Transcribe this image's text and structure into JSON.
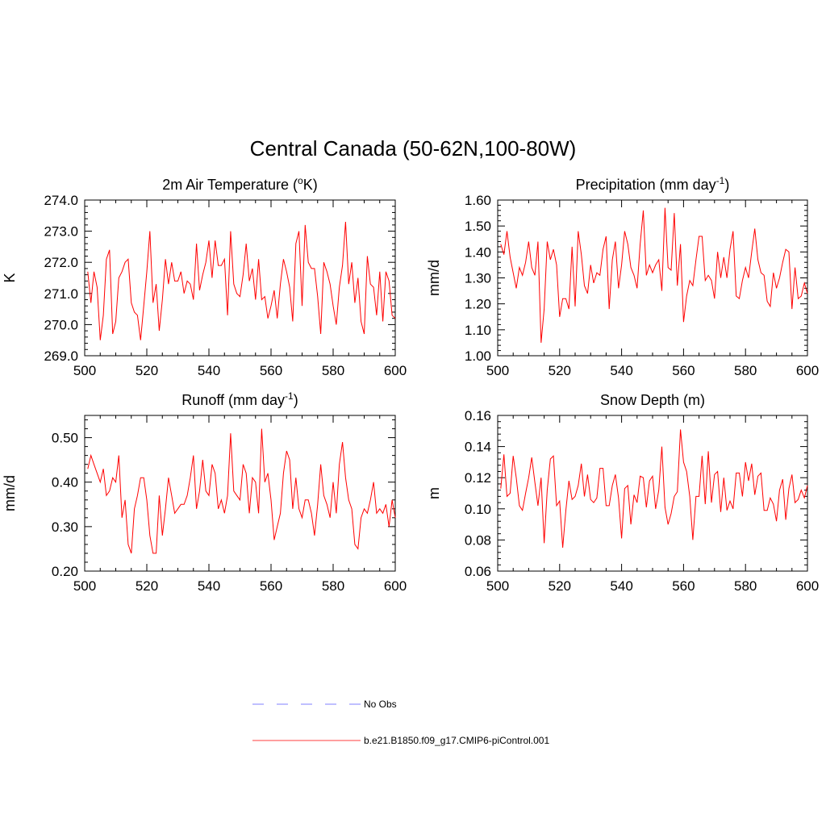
{
  "main_title": "Central Canada (50-62N,100-80W)",
  "legend": [
    {
      "label": "No Obs",
      "color": "#9999ff",
      "style": "dashed"
    },
    {
      "label": "b.e21.B1850.f09_g17.CMIP6-piControl.001",
      "color": "#ff6666",
      "style": "solid"
    }
  ],
  "chart_data": [
    {
      "type": "line",
      "title": "2m Air Temperature (",
      "title_sup": "o",
      "title_suffix": "K)",
      "ylabel": "K",
      "xlabel": "",
      "xlim": [
        500,
        600
      ],
      "ylim": [
        269.0,
        274.0
      ],
      "xticks": [
        500,
        520,
        540,
        560,
        580,
        600
      ],
      "xtick_labels": [
        "500",
        "520",
        "540",
        "560",
        "580",
        "600"
      ],
      "yticks": [
        269.0,
        270.0,
        271.0,
        272.0,
        273.0,
        274.0
      ],
      "ytick_labels": [
        "269.0",
        "270.0",
        "271.0",
        "272.0",
        "273.0",
        "274.0"
      ],
      "series": [
        {
          "name": "b.e21.B1850.f09_g17.CMIP6-piControl.001",
          "x_start": 501,
          "values": [
            271.7,
            270.7,
            271.7,
            271.2,
            269.5,
            270.3,
            272.1,
            272.4,
            269.7,
            270.1,
            271.5,
            271.7,
            272.0,
            272.1,
            270.7,
            270.4,
            270.3,
            269.5,
            270.6,
            271.7,
            273.0,
            270.7,
            271.3,
            269.8,
            270.8,
            272.1,
            271.3,
            272.0,
            271.4,
            271.4,
            271.7,
            271.0,
            271.4,
            271.3,
            270.8,
            272.6,
            271.1,
            271.6,
            272.0,
            272.7,
            271.5,
            272.7,
            271.9,
            271.9,
            272.1,
            270.3,
            273.0,
            271.3,
            271.0,
            270.9,
            271.6,
            272.6,
            271.4,
            271.8,
            270.8,
            272.1,
            270.8,
            270.9,
            270.2,
            270.6,
            271.1,
            270.2,
            271.3,
            272.1,
            271.7,
            271.2,
            270.1,
            272.6,
            273.0,
            270.6,
            273.2,
            272.0,
            271.8,
            271.8,
            270.9,
            269.7,
            272.0,
            271.7,
            271.3,
            270.6,
            270.0,
            271.2,
            271.9,
            273.3,
            271.3,
            272.0,
            270.7,
            271.5,
            270.1,
            269.7,
            272.2,
            271.3,
            271.2,
            270.3,
            271.7,
            270.1,
            271.7,
            271.4,
            270.3,
            270.2
          ]
        }
      ]
    },
    {
      "type": "line",
      "title": "Precipitation (mm day",
      "title_sup": "-1",
      "title_suffix": ")",
      "ylabel": "mm/d",
      "xlabel": "",
      "xlim": [
        500,
        600
      ],
      "ylim": [
        1.0,
        1.6
      ],
      "xticks": [
        500,
        520,
        540,
        560,
        580,
        600
      ],
      "xtick_labels": [
        "500",
        "520",
        "540",
        "560",
        "580",
        "600"
      ],
      "yticks": [
        1.0,
        1.1,
        1.2,
        1.3,
        1.4,
        1.5,
        1.6
      ],
      "ytick_labels": [
        "1.00",
        "1.10",
        "1.20",
        "1.30",
        "1.40",
        "1.50",
        "1.60"
      ],
      "series": [
        {
          "name": "b.e21.B1850.f09_g17.CMIP6-piControl.001",
          "x_start": 501,
          "values": [
            1.43,
            1.39,
            1.48,
            1.38,
            1.32,
            1.26,
            1.34,
            1.31,
            1.36,
            1.44,
            1.34,
            1.31,
            1.44,
            1.05,
            1.18,
            1.44,
            1.37,
            1.41,
            1.35,
            1.15,
            1.22,
            1.22,
            1.18,
            1.42,
            1.19,
            1.48,
            1.39,
            1.27,
            1.24,
            1.35,
            1.28,
            1.32,
            1.31,
            1.41,
            1.46,
            1.18,
            1.37,
            1.44,
            1.26,
            1.35,
            1.48,
            1.43,
            1.34,
            1.31,
            1.26,
            1.43,
            1.56,
            1.31,
            1.35,
            1.32,
            1.35,
            1.37,
            1.25,
            1.57,
            1.34,
            1.33,
            1.55,
            1.27,
            1.43,
            1.13,
            1.23,
            1.29,
            1.27,
            1.37,
            1.46,
            1.46,
            1.29,
            1.31,
            1.29,
            1.22,
            1.4,
            1.3,
            1.38,
            1.3,
            1.41,
            1.48,
            1.23,
            1.22,
            1.29,
            1.34,
            1.3,
            1.4,
            1.49,
            1.37,
            1.32,
            1.31,
            1.21,
            1.19,
            1.32,
            1.26,
            1.3,
            1.36,
            1.41,
            1.4,
            1.18,
            1.34,
            1.22,
            1.23,
            1.28,
            1.24
          ]
        }
      ]
    },
    {
      "type": "line",
      "title": "Runoff (mm day",
      "title_sup": "-1",
      "title_suffix": ")",
      "ylabel": "mm/d",
      "xlabel": "",
      "xlim": [
        500,
        600
      ],
      "ylim": [
        0.2,
        0.55
      ],
      "xticks": [
        500,
        520,
        540,
        560,
        580,
        600
      ],
      "xtick_labels": [
        "500",
        "520",
        "540",
        "560",
        "580",
        "600"
      ],
      "yticks": [
        0.2,
        0.3,
        0.4,
        0.5
      ],
      "ytick_labels": [
        "0.20",
        "0.30",
        "0.40",
        "0.50"
      ],
      "series": [
        {
          "name": "b.e21.B1850.f09_g17.CMIP6-piControl.001",
          "x_start": 501,
          "values": [
            0.43,
            0.46,
            0.44,
            0.42,
            0.4,
            0.43,
            0.37,
            0.38,
            0.41,
            0.4,
            0.46,
            0.32,
            0.36,
            0.26,
            0.24,
            0.34,
            0.37,
            0.41,
            0.41,
            0.36,
            0.28,
            0.24,
            0.24,
            0.37,
            0.28,
            0.34,
            0.41,
            0.37,
            0.33,
            0.34,
            0.35,
            0.35,
            0.37,
            0.41,
            0.46,
            0.34,
            0.38,
            0.45,
            0.38,
            0.37,
            0.44,
            0.42,
            0.34,
            0.36,
            0.33,
            0.37,
            0.51,
            0.38,
            0.37,
            0.36,
            0.44,
            0.42,
            0.33,
            0.41,
            0.4,
            0.33,
            0.52,
            0.4,
            0.42,
            0.36,
            0.27,
            0.3,
            0.33,
            0.42,
            0.47,
            0.45,
            0.34,
            0.41,
            0.34,
            0.32,
            0.36,
            0.36,
            0.33,
            0.28,
            0.35,
            0.44,
            0.37,
            0.35,
            0.32,
            0.4,
            0.33,
            0.44,
            0.49,
            0.41,
            0.36,
            0.34,
            0.26,
            0.25,
            0.32,
            0.34,
            0.33,
            0.36,
            0.4,
            0.33,
            0.34,
            0.33,
            0.35,
            0.3,
            0.36,
            0.32
          ]
        }
      ]
    },
    {
      "type": "line",
      "title": "Snow Depth (m)",
      "title_sup": "",
      "title_suffix": "",
      "ylabel": "m",
      "xlabel": "",
      "xlim": [
        500,
        600
      ],
      "ylim": [
        0.06,
        0.16
      ],
      "xticks": [
        500,
        520,
        540,
        560,
        580,
        600
      ],
      "xtick_labels": [
        "500",
        "520",
        "540",
        "560",
        "580",
        "600"
      ],
      "yticks": [
        0.06,
        0.08,
        0.1,
        0.12,
        0.14,
        0.16
      ],
      "ytick_labels": [
        "0.06",
        "0.08",
        "0.10",
        "0.12",
        "0.14",
        "0.16"
      ],
      "series": [
        {
          "name": "b.e21.B1850.f09_g17.CMIP6-piControl.001",
          "x_start": 501,
          "values": [
            0.113,
            0.135,
            0.108,
            0.11,
            0.134,
            0.12,
            0.102,
            0.099,
            0.11,
            0.12,
            0.133,
            0.117,
            0.102,
            0.12,
            0.078,
            0.112,
            0.132,
            0.134,
            0.102,
            0.105,
            0.075,
            0.099,
            0.118,
            0.106,
            0.108,
            0.115,
            0.129,
            0.108,
            0.122,
            0.106,
            0.104,
            0.107,
            0.126,
            0.126,
            0.102,
            0.102,
            0.115,
            0.122,
            0.107,
            0.081,
            0.113,
            0.115,
            0.09,
            0.109,
            0.104,
            0.121,
            0.12,
            0.101,
            0.118,
            0.121,
            0.1,
            0.112,
            0.14,
            0.101,
            0.09,
            0.097,
            0.108,
            0.111,
            0.151,
            0.13,
            0.124,
            0.108,
            0.08,
            0.108,
            0.108,
            0.134,
            0.103,
            0.137,
            0.104,
            0.122,
            0.124,
            0.098,
            0.12,
            0.099,
            0.105,
            0.1,
            0.123,
            0.123,
            0.108,
            0.13,
            0.118,
            0.129,
            0.109,
            0.121,
            0.123,
            0.099,
            0.099,
            0.107,
            0.103,
            0.092,
            0.112,
            0.119,
            0.093,
            0.113,
            0.122,
            0.104,
            0.106,
            0.112,
            0.107,
            0.115
          ]
        }
      ]
    }
  ]
}
